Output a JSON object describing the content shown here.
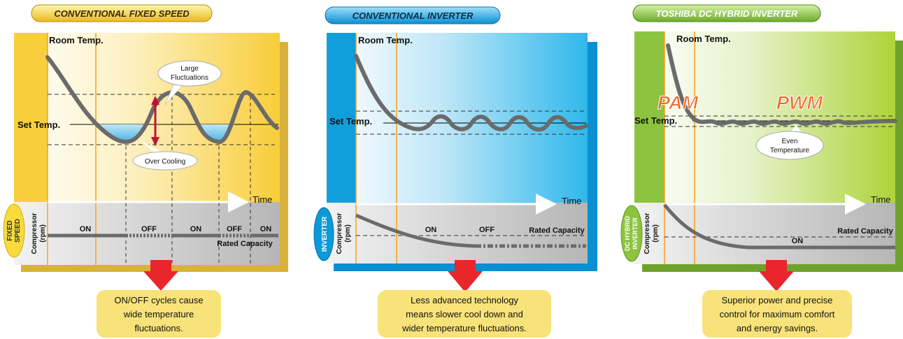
{
  "panels": [
    {
      "header": "CONVENTIONAL FIXED SPEED",
      "header_color": "#f5d23a",
      "room_temp": "Room Temp.",
      "set_temp": "Set Temp.",
      "time": "Time",
      "side_badge": [
        "FIXED",
        "SPEED"
      ],
      "compressor": [
        "Compressor",
        "(rpm)"
      ],
      "callouts": [
        "Large",
        "Fluctuations",
        "Over Cooling"
      ],
      "states": [
        "ON",
        "OFF",
        "ON",
        "OFF",
        "ON"
      ],
      "rated_capacity": "Rated Capacity",
      "caption": [
        "ON/OFF cycles cause",
        "wide temperature",
        "fluctuations."
      ]
    },
    {
      "header": "CONVENTIONAL INVERTER",
      "header_color": "#1ba6e0",
      "room_temp": "Room Temp.",
      "set_temp": "Set Temp.",
      "time": "Time",
      "side_badge": [
        "INVERTER"
      ],
      "compressor": [
        "Compressor",
        "(rpm)"
      ],
      "states": [
        "ON",
        "OFF"
      ],
      "rated_capacity": "Rated Capacity",
      "caption": [
        "Less advanced technology",
        "means slower cool down and",
        "wider temperature fluctuations."
      ]
    },
    {
      "header": "TOSHIBA DC HYBRID INVERTER",
      "header_color": "#8cc63f",
      "room_temp": "Room Temp.",
      "set_temp": "Set Temp.",
      "time": "Time",
      "side_badge": [
        "DC HYBRID",
        "INVERTER"
      ],
      "compressor": [
        "Compressor",
        "(rpm)"
      ],
      "modes": [
        "PAM",
        "PWM"
      ],
      "callouts": [
        "Even",
        "Temperature"
      ],
      "states": [
        "ON"
      ],
      "rated_capacity": "Rated Capacity",
      "caption": [
        "Superior power and precise",
        "control for maximum comfort",
        "and energy savings."
      ]
    }
  ],
  "colors": {
    "curve": "#6b6b6b",
    "arrow_red": "#e8262b",
    "caption_bg": "#f8e27a",
    "pam_pwm": "#f26522"
  }
}
